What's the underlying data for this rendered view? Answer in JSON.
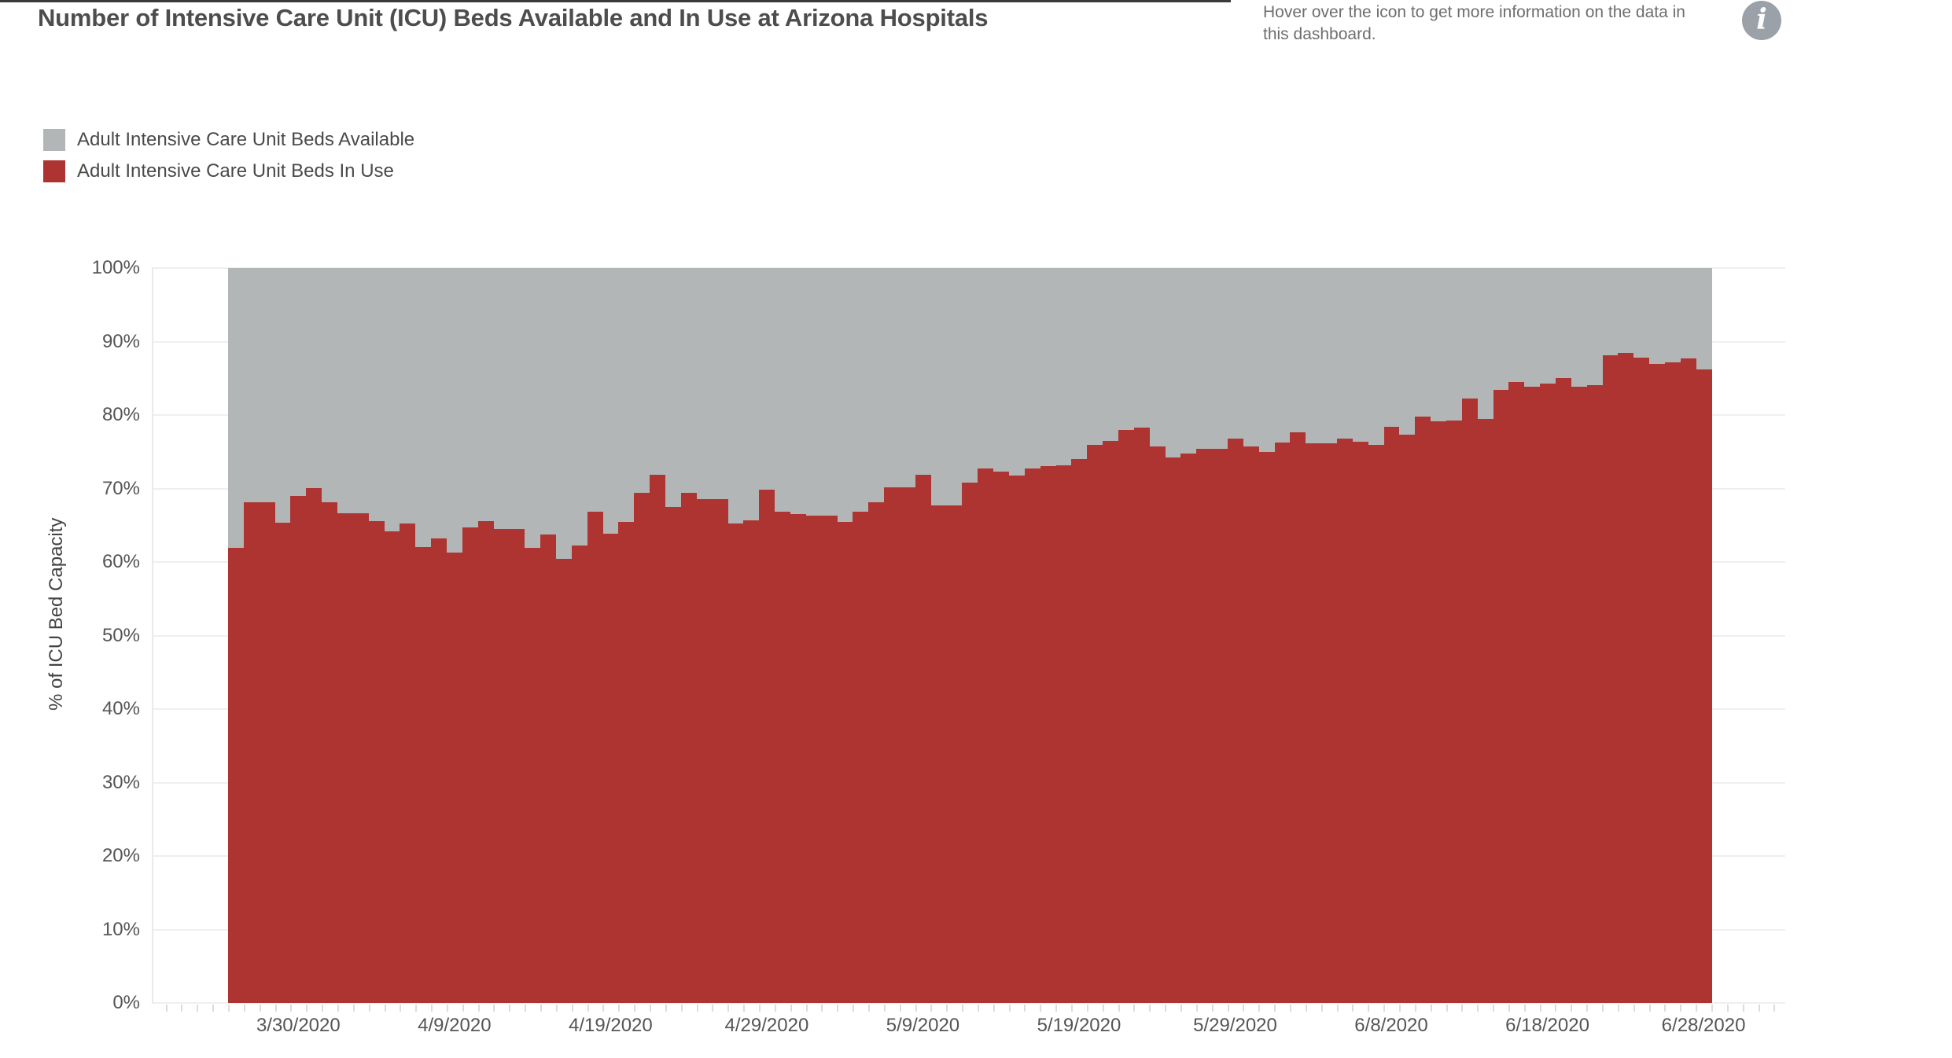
{
  "colors": {
    "in_use_red": "#AD3430",
    "available_gray": "#B3B6B6",
    "title_text": "#4D4D4D",
    "axis_text": "#555555",
    "legend_text": "#4A4A4A",
    "info_text": "#6E6E6E",
    "info_icon_bg": "#9AA1A8",
    "gridline": "#EFEFEF",
    "tick": "#DCDCDC",
    "top_border": "#3A3A3A"
  },
  "header": {
    "title": "Number of Intensive Care Unit (ICU) Beds Available and In Use at Arizona Hospitals",
    "info_text": "Hover over the icon to get more information on the data in this dashboard.",
    "info_icon_glyph": "i"
  },
  "legend": {
    "items": [
      {
        "label": "Adult Intensive Care Unit Beds Available",
        "color": "#B3B6B6"
      },
      {
        "label": "Adult Intensive Care Unit Beds In Use",
        "color": "#AD3430"
      }
    ]
  },
  "chart_data": {
    "type": "bar",
    "subtype": "stacked-100-percent-daily",
    "title": "Number of Intensive Care Unit (ICU) Beds Available and In Use at Arizona Hospitals",
    "xlabel": "",
    "ylabel": "% of ICU Bed Capacity",
    "ylim": [
      0,
      100
    ],
    "stack_total": 100,
    "grid": "horizontal",
    "legend_position": "top-left",
    "y_tick_labels": [
      "0%",
      "10%",
      "20%",
      "30%",
      "40%",
      "50%",
      "60%",
      "70%",
      "80%",
      "90%",
      "100%"
    ],
    "x_tick_labels": [
      "3/30/2020",
      "4/9/2020",
      "4/19/2020",
      "4/29/2020",
      "5/9/2020",
      "5/19/2020",
      "5/29/2020",
      "6/8/2020",
      "6/18/2020",
      "6/28/2020"
    ],
    "categories": [
      "3/26/2020",
      "3/27/2020",
      "3/28/2020",
      "3/29/2020",
      "3/30/2020",
      "3/31/2020",
      "4/1/2020",
      "4/2/2020",
      "4/3/2020",
      "4/4/2020",
      "4/5/2020",
      "4/6/2020",
      "4/7/2020",
      "4/8/2020",
      "4/9/2020",
      "4/10/2020",
      "4/11/2020",
      "4/12/2020",
      "4/13/2020",
      "4/14/2020",
      "4/15/2020",
      "4/16/2020",
      "4/17/2020",
      "4/18/2020",
      "4/19/2020",
      "4/20/2020",
      "4/21/2020",
      "4/22/2020",
      "4/23/2020",
      "4/24/2020",
      "4/25/2020",
      "4/26/2020",
      "4/27/2020",
      "4/28/2020",
      "4/29/2020",
      "4/30/2020",
      "5/1/2020",
      "5/2/2020",
      "5/3/2020",
      "5/4/2020",
      "5/5/2020",
      "5/6/2020",
      "5/7/2020",
      "5/8/2020",
      "5/9/2020",
      "5/10/2020",
      "5/11/2020",
      "5/12/2020",
      "5/13/2020",
      "5/14/2020",
      "5/15/2020",
      "5/16/2020",
      "5/17/2020",
      "5/18/2020",
      "5/19/2020",
      "5/20/2020",
      "5/21/2020",
      "5/22/2020",
      "5/23/2020",
      "5/24/2020",
      "5/25/2020",
      "5/26/2020",
      "5/27/2020",
      "5/28/2020",
      "5/29/2020",
      "5/30/2020",
      "5/31/2020",
      "6/1/2020",
      "6/2/2020",
      "6/3/2020",
      "6/4/2020",
      "6/5/2020",
      "6/6/2020",
      "6/7/2020",
      "6/8/2020",
      "6/9/2020",
      "6/10/2020",
      "6/11/2020",
      "6/12/2020",
      "6/13/2020",
      "6/14/2020",
      "6/15/2020",
      "6/16/2020",
      "6/17/2020",
      "6/18/2020",
      "6/19/2020",
      "6/20/2020",
      "6/21/2020",
      "6/22/2020",
      "6/23/2020",
      "6/24/2020",
      "6/25/2020",
      "6/26/2020",
      "6/27/2020",
      "6/28/2020"
    ],
    "series": [
      {
        "name": "Adult Intensive Care Unit Beds In Use",
        "color": "#AD3430",
        "unit": "% of ICU bed capacity",
        "values": [
          61.9,
          68.1,
          68.1,
          65.4,
          69.0,
          70.1,
          68.1,
          66.6,
          66.6,
          65.6,
          64.2,
          65.2,
          62.0,
          63.2,
          61.3,
          64.7,
          65.6,
          64.5,
          64.5,
          61.9,
          63.7,
          60.4,
          62.3,
          66.8,
          63.9,
          65.5,
          69.4,
          71.9,
          67.5,
          69.4,
          68.6,
          68.6,
          65.2,
          65.7,
          69.8,
          66.8,
          66.5,
          66.3,
          66.3,
          65.5,
          66.9,
          68.1,
          70.2,
          70.2,
          71.9,
          67.7,
          67.7,
          70.8,
          72.7,
          72.3,
          71.8,
          72.7,
          73.1,
          73.2,
          74.0,
          75.9,
          76.5,
          78.0,
          78.3,
          75.7,
          74.2,
          74.8,
          75.4,
          75.4,
          76.8,
          75.7,
          75.0,
          76.3,
          77.6,
          76.1,
          76.2,
          76.8,
          76.4,
          75.9,
          78.4,
          77.3,
          79.8,
          79.1,
          79.3,
          82.3,
          79.5,
          83.4,
          84.5,
          83.9,
          84.3,
          85.0,
          83.9,
          84.1,
          88.1,
          88.4,
          87.8,
          87.0,
          87.2,
          87.7,
          86.2
        ]
      },
      {
        "name": "Adult Intensive Care Unit Beds Available",
        "color": "#B3B6B6",
        "derived": "remainder_to_stack_total"
      }
    ]
  }
}
